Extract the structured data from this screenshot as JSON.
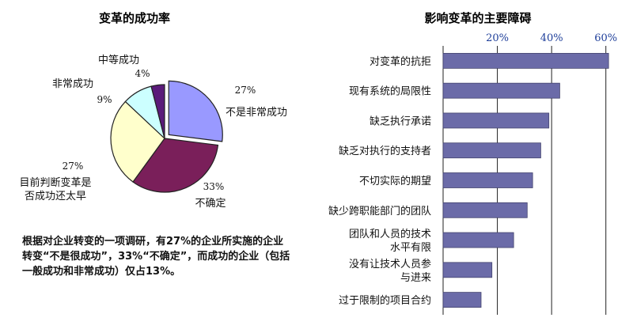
{
  "chart_data": [
    {
      "type": "pie",
      "title": "变革的成功率",
      "slices": [
        {
          "label": "不是非常成功",
          "value": 27,
          "pct_label": "27%",
          "color": "#9999ff"
        },
        {
          "label": "不确定",
          "value": 33,
          "pct_label": "33%",
          "color": "#7a1f5a"
        },
        {
          "label": "目前判断变革是否成功还太早",
          "label_lines": [
            "目前判断变革是",
            "否成功还太早"
          ],
          "value": 27,
          "pct_label": "27%",
          "color": "#ffffcc"
        },
        {
          "label": "非常成功",
          "value": 9,
          "pct_label": "9%",
          "color": "#ccffff"
        },
        {
          "label": "中等成功",
          "value": 4,
          "pct_label": "4%",
          "color": "#5a1a7a"
        }
      ]
    },
    {
      "type": "bar",
      "orientation": "horizontal",
      "title": "影响变革的主要障碍",
      "xlim": [
        0,
        70
      ],
      "ticks": [
        20,
        40,
        60
      ],
      "tick_labels": [
        "20%",
        "40%",
        "60%"
      ],
      "bar_color": "#6b6ba8",
      "categories": [
        {
          "label": "对变革的抗拒",
          "lines": [
            "对变革的抗拒"
          ]
        },
        {
          "label": "现有系统的局限性",
          "lines": [
            "现有系统的局限性"
          ]
        },
        {
          "label": "缺乏执行承诺",
          "lines": [
            "缺乏执行承诺"
          ]
        },
        {
          "label": "缺乏对执行的支持者",
          "lines": [
            "缺乏对执行的支持者"
          ]
        },
        {
          "label": "不切实际的期望",
          "lines": [
            "不切实际的期望"
          ]
        },
        {
          "label": "缺少跨职能部门的团队",
          "lines": [
            "缺少跨职能部门的团队"
          ]
        },
        {
          "label": "团队和人员的技术水平有限",
          "lines": [
            "团队和人员的技术",
            "水平有限"
          ]
        },
        {
          "label": "没有让技术人员参与进来",
          "lines": [
            "没有让技术人员参",
            "与进来"
          ]
        },
        {
          "label": "过于限制的项目合约",
          "lines": [
            "过于限制的项目合约"
          ]
        }
      ],
      "values": [
        61,
        43,
        39,
        36,
        33,
        31,
        26,
        18,
        14
      ]
    }
  ],
  "note": "根据对企业转变的一项调研，有27%的企业所实施的企业转变“不是很成功”，33%“不确定”，而成功的企业（包括一般成功和非常成功）仅占13%。"
}
